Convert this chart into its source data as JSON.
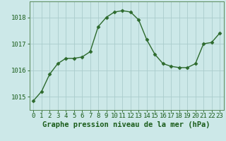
{
  "x": [
    0,
    1,
    2,
    3,
    4,
    5,
    6,
    7,
    8,
    9,
    10,
    11,
    12,
    13,
    14,
    15,
    16,
    17,
    18,
    19,
    20,
    21,
    22,
    23
  ],
  "y": [
    1014.85,
    1015.2,
    1015.85,
    1016.25,
    1016.45,
    1016.45,
    1016.5,
    1016.7,
    1017.65,
    1018.0,
    1018.2,
    1018.25,
    1018.2,
    1017.9,
    1017.15,
    1016.6,
    1016.25,
    1016.15,
    1016.1,
    1016.1,
    1016.25,
    1017.0,
    1017.05,
    1017.4
  ],
  "line_color": "#2d6a2d",
  "marker": "D",
  "marker_size": 2.5,
  "background_color": "#cce8e8",
  "grid_color": "#aacccc",
  "xlabel": "Graphe pression niveau de la mer (hPa)",
  "xlabel_fontsize": 7.5,
  "ylabel_ticks": [
    1015,
    1016,
    1017,
    1018
  ],
  "xlim": [
    -0.5,
    23.5
  ],
  "ylim": [
    1014.5,
    1018.6
  ],
  "tick_label_color": "#1a5c1a",
  "tick_fontsize": 6.5,
  "spine_color": "#5a8a5a"
}
